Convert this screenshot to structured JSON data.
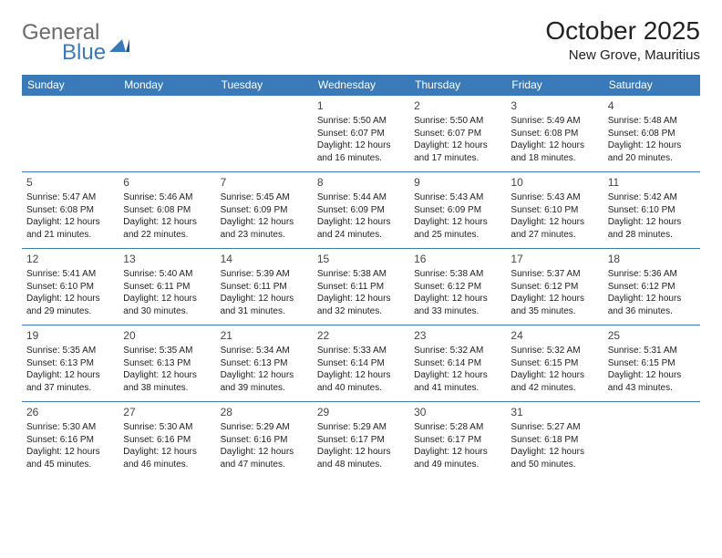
{
  "logo": {
    "text1": "General",
    "text2": "Blue"
  },
  "title": "October 2025",
  "location": "New Grove, Mauritius",
  "colors": {
    "header_bg": "#3a7ab8",
    "header_text": "#ffffff"
  },
  "weekdays": [
    "Sunday",
    "Monday",
    "Tuesday",
    "Wednesday",
    "Thursday",
    "Friday",
    "Saturday"
  ],
  "weeks": [
    [
      null,
      null,
      null,
      {
        "n": "1",
        "sr": "5:50 AM",
        "ss": "6:07 PM",
        "dl": "12 hours and 16 minutes."
      },
      {
        "n": "2",
        "sr": "5:50 AM",
        "ss": "6:07 PM",
        "dl": "12 hours and 17 minutes."
      },
      {
        "n": "3",
        "sr": "5:49 AM",
        "ss": "6:08 PM",
        "dl": "12 hours and 18 minutes."
      },
      {
        "n": "4",
        "sr": "5:48 AM",
        "ss": "6:08 PM",
        "dl": "12 hours and 20 minutes."
      }
    ],
    [
      {
        "n": "5",
        "sr": "5:47 AM",
        "ss": "6:08 PM",
        "dl": "12 hours and 21 minutes."
      },
      {
        "n": "6",
        "sr": "5:46 AM",
        "ss": "6:08 PM",
        "dl": "12 hours and 22 minutes."
      },
      {
        "n": "7",
        "sr": "5:45 AM",
        "ss": "6:09 PM",
        "dl": "12 hours and 23 minutes."
      },
      {
        "n": "8",
        "sr": "5:44 AM",
        "ss": "6:09 PM",
        "dl": "12 hours and 24 minutes."
      },
      {
        "n": "9",
        "sr": "5:43 AM",
        "ss": "6:09 PM",
        "dl": "12 hours and 25 minutes."
      },
      {
        "n": "10",
        "sr": "5:43 AM",
        "ss": "6:10 PM",
        "dl": "12 hours and 27 minutes."
      },
      {
        "n": "11",
        "sr": "5:42 AM",
        "ss": "6:10 PM",
        "dl": "12 hours and 28 minutes."
      }
    ],
    [
      {
        "n": "12",
        "sr": "5:41 AM",
        "ss": "6:10 PM",
        "dl": "12 hours and 29 minutes."
      },
      {
        "n": "13",
        "sr": "5:40 AM",
        "ss": "6:11 PM",
        "dl": "12 hours and 30 minutes."
      },
      {
        "n": "14",
        "sr": "5:39 AM",
        "ss": "6:11 PM",
        "dl": "12 hours and 31 minutes."
      },
      {
        "n": "15",
        "sr": "5:38 AM",
        "ss": "6:11 PM",
        "dl": "12 hours and 32 minutes."
      },
      {
        "n": "16",
        "sr": "5:38 AM",
        "ss": "6:12 PM",
        "dl": "12 hours and 33 minutes."
      },
      {
        "n": "17",
        "sr": "5:37 AM",
        "ss": "6:12 PM",
        "dl": "12 hours and 35 minutes."
      },
      {
        "n": "18",
        "sr": "5:36 AM",
        "ss": "6:12 PM",
        "dl": "12 hours and 36 minutes."
      }
    ],
    [
      {
        "n": "19",
        "sr": "5:35 AM",
        "ss": "6:13 PM",
        "dl": "12 hours and 37 minutes."
      },
      {
        "n": "20",
        "sr": "5:35 AM",
        "ss": "6:13 PM",
        "dl": "12 hours and 38 minutes."
      },
      {
        "n": "21",
        "sr": "5:34 AM",
        "ss": "6:13 PM",
        "dl": "12 hours and 39 minutes."
      },
      {
        "n": "22",
        "sr": "5:33 AM",
        "ss": "6:14 PM",
        "dl": "12 hours and 40 minutes."
      },
      {
        "n": "23",
        "sr": "5:32 AM",
        "ss": "6:14 PM",
        "dl": "12 hours and 41 minutes."
      },
      {
        "n": "24",
        "sr": "5:32 AM",
        "ss": "6:15 PM",
        "dl": "12 hours and 42 minutes."
      },
      {
        "n": "25",
        "sr": "5:31 AM",
        "ss": "6:15 PM",
        "dl": "12 hours and 43 minutes."
      }
    ],
    [
      {
        "n": "26",
        "sr": "5:30 AM",
        "ss": "6:16 PM",
        "dl": "12 hours and 45 minutes."
      },
      {
        "n": "27",
        "sr": "5:30 AM",
        "ss": "6:16 PM",
        "dl": "12 hours and 46 minutes."
      },
      {
        "n": "28",
        "sr": "5:29 AM",
        "ss": "6:16 PM",
        "dl": "12 hours and 47 minutes."
      },
      {
        "n": "29",
        "sr": "5:29 AM",
        "ss": "6:17 PM",
        "dl": "12 hours and 48 minutes."
      },
      {
        "n": "30",
        "sr": "5:28 AM",
        "ss": "6:17 PM",
        "dl": "12 hours and 49 minutes."
      },
      {
        "n": "31",
        "sr": "5:27 AM",
        "ss": "6:18 PM",
        "dl": "12 hours and 50 minutes."
      },
      null
    ]
  ],
  "labels": {
    "sunrise": "Sunrise:",
    "sunset": "Sunset:",
    "daylight": "Daylight:"
  }
}
